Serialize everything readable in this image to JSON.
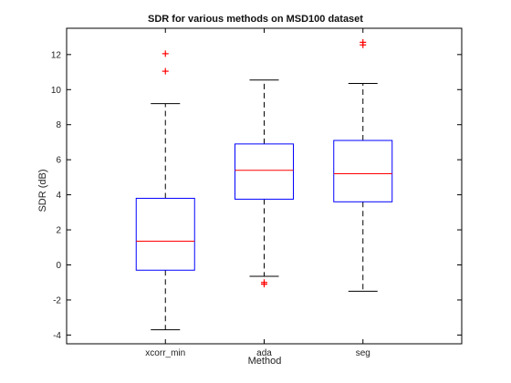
{
  "chart_data": {
    "type": "box",
    "title": "SDR for various methods on MSD100 dataset",
    "xlabel": "Method",
    "ylabel": "SDR (dB)",
    "ylim": [
      -4.5,
      13.5
    ],
    "yticks": [
      -4,
      -2,
      0,
      2,
      4,
      6,
      8,
      10,
      12
    ],
    "categories": [
      "xcorr_min",
      "ada",
      "seg"
    ],
    "boxes": [
      {
        "name": "xcorr_min",
        "whisker_low": -3.7,
        "q1": -0.3,
        "median": 1.35,
        "q3": 3.8,
        "whisker_high": 9.2,
        "outliers": [
          11.05,
          12.05
        ]
      },
      {
        "name": "ada",
        "whisker_low": -0.65,
        "q1": 3.75,
        "median": 5.4,
        "q3": 6.9,
        "whisker_high": 10.55,
        "outliers": [
          -1.0,
          -1.1
        ]
      },
      {
        "name": "seg",
        "whisker_low": -1.5,
        "q1": 3.6,
        "median": 5.2,
        "q3": 7.1,
        "whisker_high": 10.35,
        "outliers": [
          12.55,
          12.7
        ]
      }
    ],
    "colors": {
      "box": "#0000ff",
      "median": "#ff0000",
      "whisker": "#000000",
      "outlier": "#ff0000",
      "axes": "#000000"
    },
    "grid": false
  }
}
